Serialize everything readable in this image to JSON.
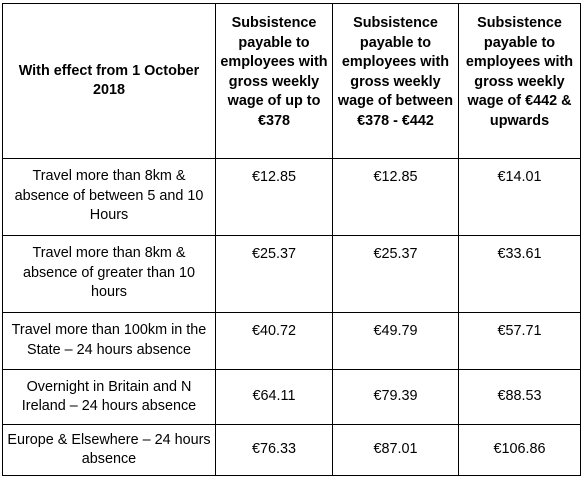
{
  "table": {
    "headers": [
      "With effect from 1 October 2018",
      "Subsistence payable to employees with gross weekly wage of up to €378",
      "Subsistence payable to employees with gross weekly wage of between €378 - €442",
      "Subsistence payable to employees with gross weekly wage of €442 & upwards"
    ],
    "rows": [
      {
        "label": "Travel more than 8km & absence of between 5 and 10 Hours",
        "values": [
          "€12.85",
          "€12.85",
          "€14.01"
        ]
      },
      {
        "label": "Travel more than 8km & absence of greater than 10 hours",
        "values": [
          "€25.37",
          "€25.37",
          "€33.61"
        ]
      },
      {
        "label": "Travel more than 100km in the State – 24 hours absence",
        "values": [
          "€40.72",
          "€49.79",
          "€57.71"
        ]
      },
      {
        "label": "Overnight in Britain and N Ireland – 24 hours absence",
        "values": [
          "€64.11",
          "€79.39",
          "€88.53"
        ]
      },
      {
        "label": "Europe & Elsewhere – 24 hours absence",
        "values": [
          "€76.33",
          "€87.01",
          "€106.86"
        ]
      }
    ]
  }
}
